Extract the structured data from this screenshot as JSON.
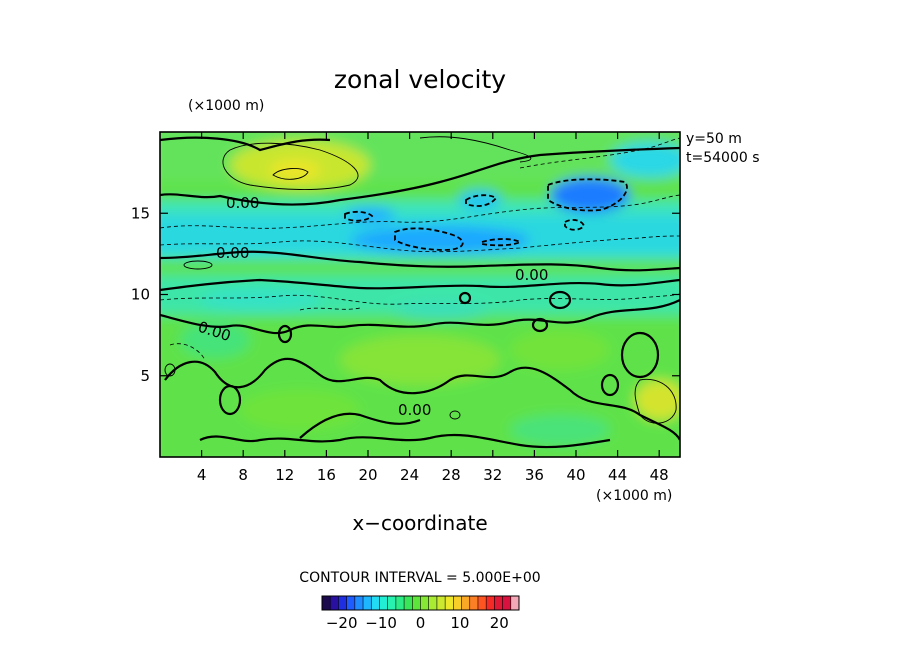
{
  "chart_data": {
    "type": "heatmap",
    "title": "zonal velocity",
    "xlabel": "x−coordinate",
    "x_unit_label": "(×1000 m)",
    "y_unit_label": "(×1000 m)",
    "xlim": [
      0,
      50
    ],
    "ylim": [
      0,
      20
    ],
    "x_ticks": [
      4,
      8,
      12,
      16,
      20,
      24,
      28,
      32,
      36,
      40,
      44,
      48
    ],
    "y_ticks": [
      5,
      10,
      15
    ],
    "info_lines": [
      "y=50 m",
      "t=54000 s"
    ],
    "contour_interval_text": "CONTOUR INTERVAL = 5.000E+00",
    "contour_labels": [
      "0.00",
      "0.00",
      "0.00",
      "0.00",
      "0.00"
    ],
    "colorbar": {
      "range": [
        -25,
        25
      ],
      "ticks": [
        -20,
        -10,
        0,
        10,
        20
      ],
      "tick_labels": [
        "−20",
        "−10",
        "0",
        "10",
        "20"
      ],
      "colors": [
        "#1c0b4c",
        "#2a10a0",
        "#1f2ee0",
        "#1e5cff",
        "#1f8cff",
        "#1eb6ff",
        "#22dcf4",
        "#22eed6",
        "#27f2b0",
        "#2bec86",
        "#39e65a",
        "#5ee53c",
        "#86e737",
        "#a9ea33",
        "#cde92f",
        "#eee82a",
        "#f7cf28",
        "#f9a926",
        "#fb7f24",
        "#fc5522",
        "#f52a26",
        "#e01836",
        "#d8123e",
        "#f2a8b6"
      ]
    },
    "field_bands": [
      {
        "y_range": [
          18,
          20
        ],
        "mean_velocity": 2
      },
      {
        "y_range": [
          16.5,
          18
        ],
        "mean_velocity": 7
      },
      {
        "y_range": [
          14,
          16.5
        ],
        "mean_velocity": -5
      },
      {
        "y_range": [
          11,
          14
        ],
        "mean_velocity": -8
      },
      {
        "y_range": [
          9,
          11
        ],
        "mean_velocity": -2
      },
      {
        "y_range": [
          4,
          9
        ],
        "mean_velocity": 0
      },
      {
        "y_range": [
          0,
          4
        ],
        "mean_velocity": 2
      }
    ],
    "grid": false
  }
}
